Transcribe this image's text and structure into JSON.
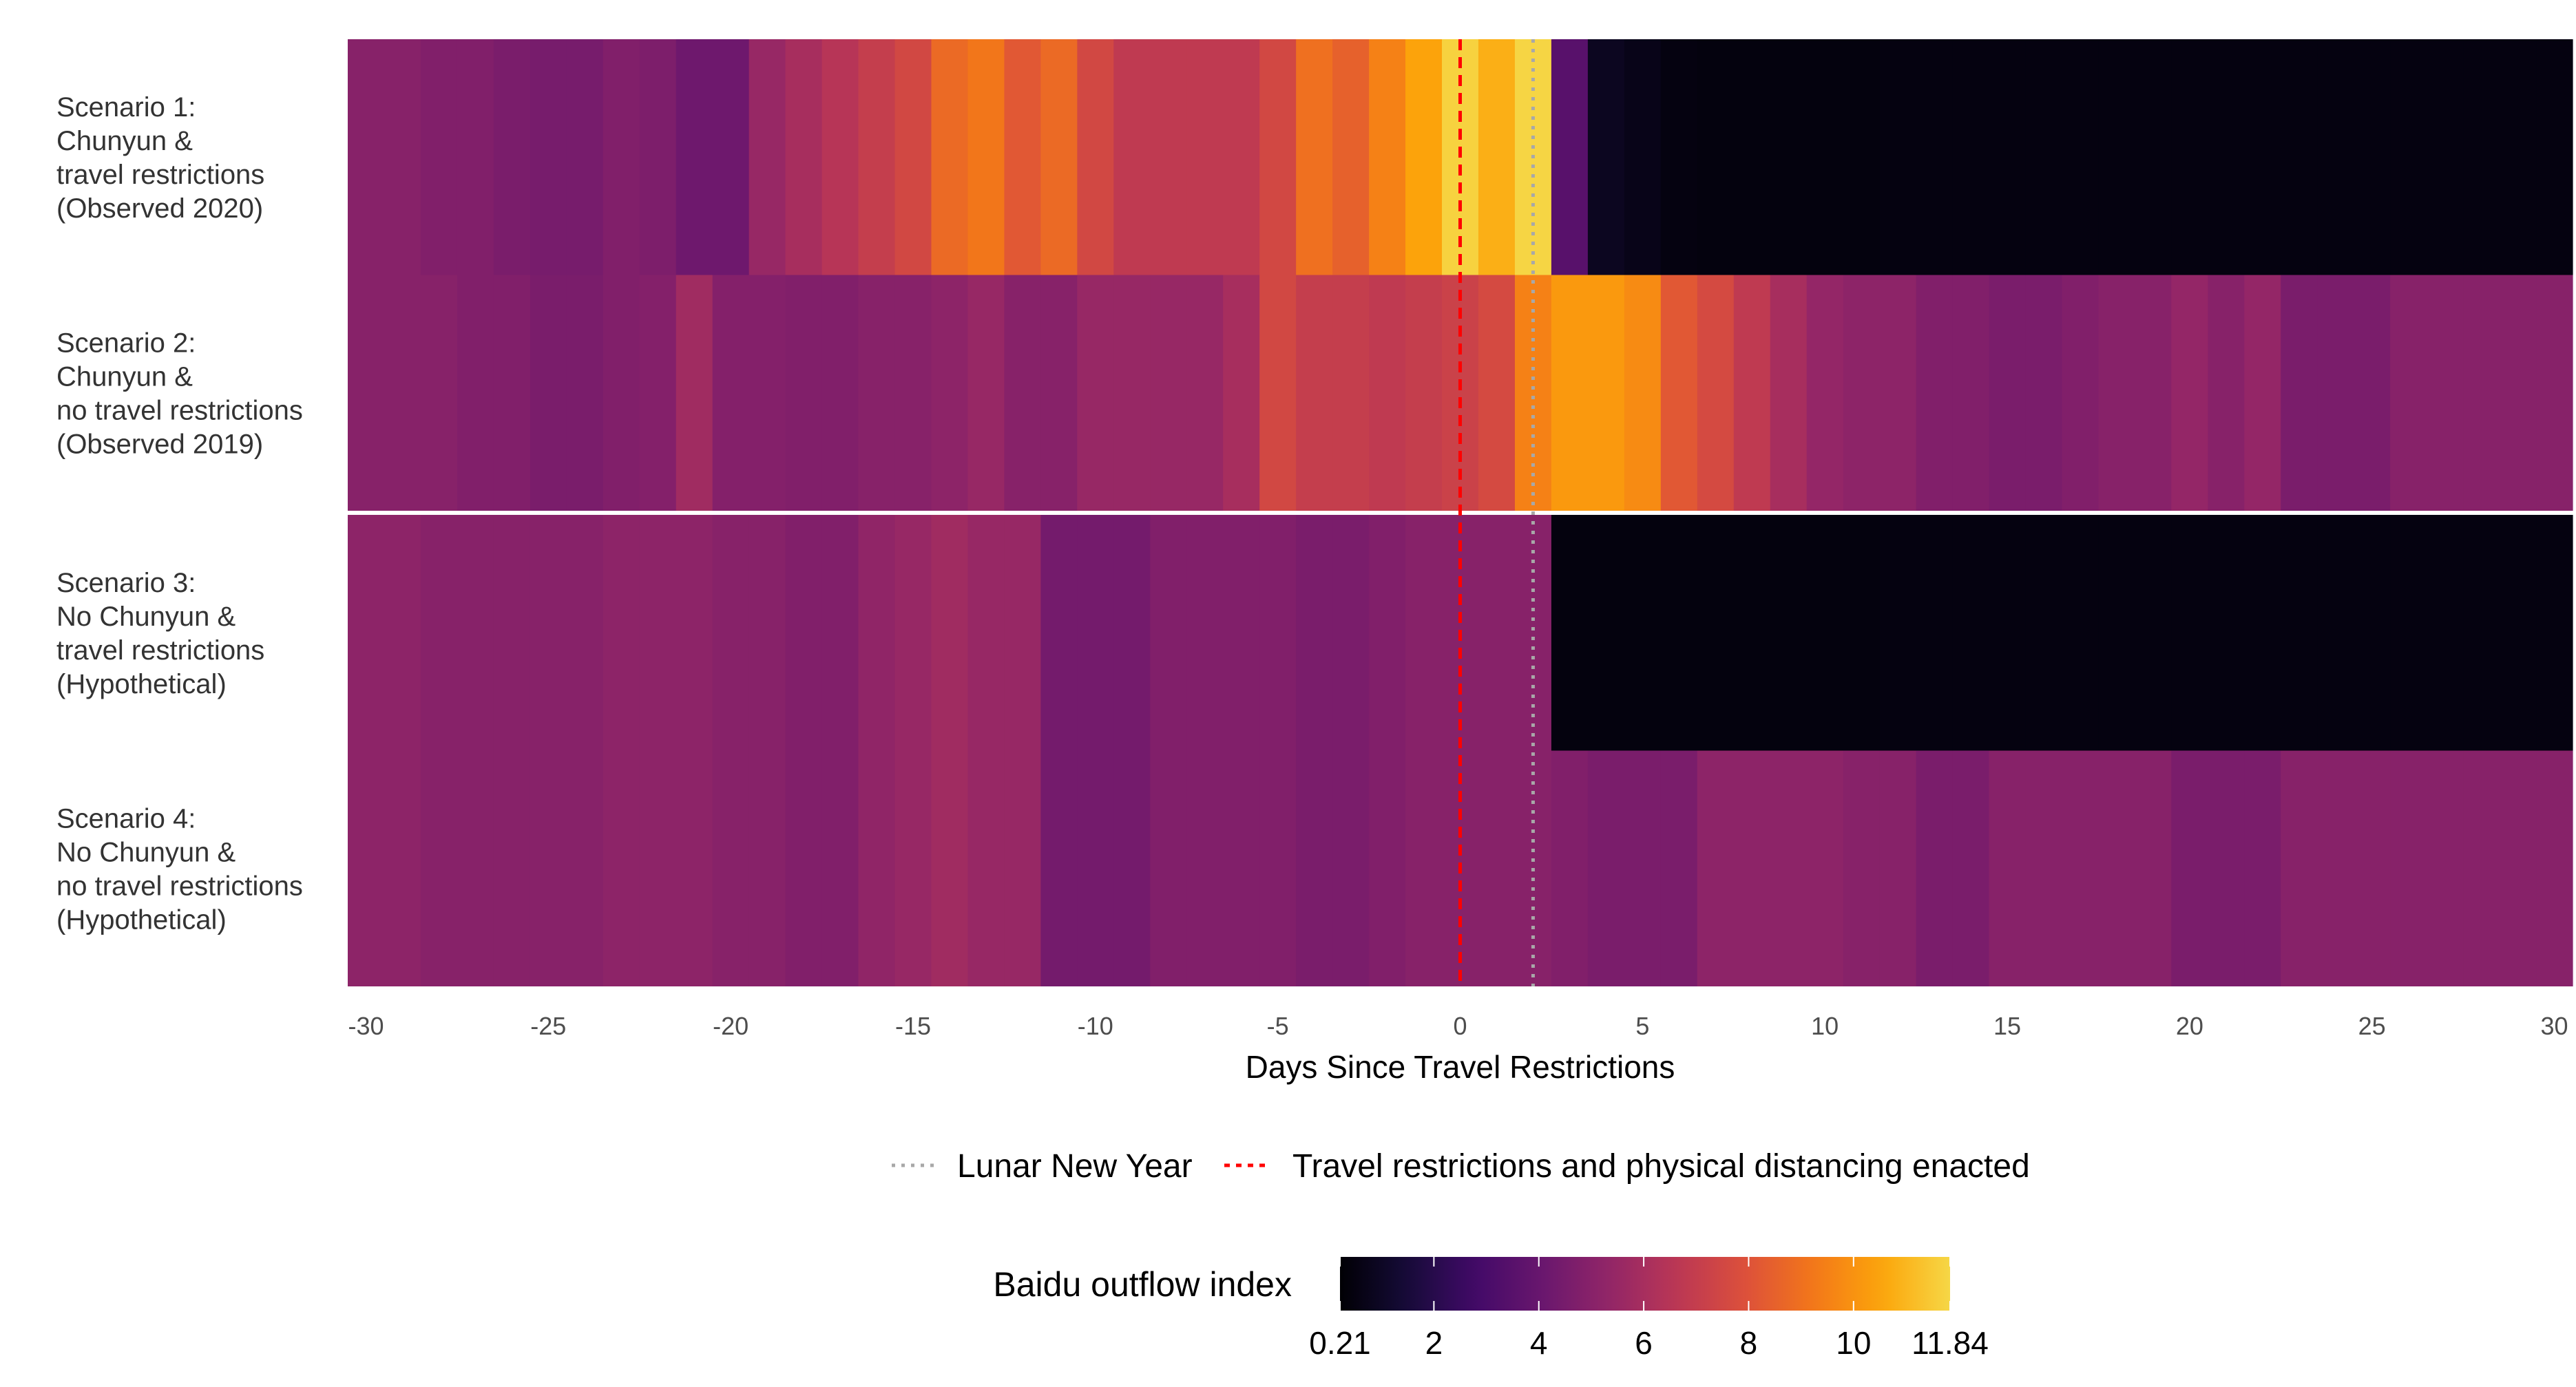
{
  "chart_data": {
    "type": "heatmap",
    "xlabel": "Days Since Travel Restrictions",
    "x_ticks": [
      -30,
      -25,
      -20,
      -15,
      -10,
      -5,
      0,
      5,
      10,
      15,
      20,
      25,
      30
    ],
    "x_tick_labels": [
      "-30",
      "-25",
      "-20",
      "-15",
      "-10",
      "-5",
      "0",
      "5",
      "10",
      "15",
      "20",
      "25",
      "30"
    ],
    "x_range": [
      -30.5,
      30.5
    ],
    "day_range": [
      -30,
      30
    ],
    "rows": [
      {
        "label_lines": [
          "Scenario 1:",
          "Chunyun &",
          "travel restrictions",
          "(Observed 2020)"
        ],
        "values": [
          5.0,
          5.0,
          4.8,
          4.8,
          4.6,
          4.5,
          4.5,
          4.8,
          4.7,
          4.2,
          4.2,
          5.5,
          6.0,
          6.5,
          7.0,
          7.5,
          8.8,
          9.2,
          8.2,
          8.8,
          7.5,
          6.8,
          6.8,
          6.8,
          6.8,
          7.5,
          9.0,
          8.5,
          9.5,
          10.5,
          11.7,
          10.8,
          11.8,
          3.5,
          0.9,
          0.7,
          0.5,
          0.45,
          0.45,
          0.45,
          0.45,
          0.45,
          0.5,
          0.5,
          0.5,
          0.5,
          0.5,
          0.5,
          0.5,
          0.5,
          0.5,
          0.5,
          0.5,
          0.5,
          0.5,
          0.5,
          0.5,
          0.5,
          0.5,
          0.5,
          0.5
        ]
      },
      {
        "label_lines": [
          "Scenario 2:",
          "Chunyun &",
          "no travel restrictions",
          "(Observed 2019)"
        ],
        "values": [
          5.0,
          5.0,
          5.0,
          4.8,
          4.8,
          4.6,
          4.6,
          4.8,
          4.9,
          5.8,
          4.9,
          4.9,
          4.8,
          4.8,
          5.0,
          5.0,
          5.2,
          5.5,
          5.0,
          5.0,
          5.5,
          5.5,
          5.5,
          5.5,
          6.0,
          7.5,
          7.0,
          7.0,
          6.8,
          7.0,
          7.2,
          7.6,
          9.5,
          10.2,
          10.2,
          9.8,
          8.2,
          7.6,
          6.8,
          6.0,
          5.4,
          5.2,
          5.2,
          4.8,
          4.8,
          4.6,
          4.6,
          4.8,
          5.0,
          5.0,
          5.4,
          5.0,
          5.4,
          4.6,
          4.6,
          4.6,
          5.0,
          5.0,
          5.0,
          5.0,
          5.0
        ]
      },
      {
        "label_lines": [
          "Scenario 3:",
          "No Chunyun &",
          "travel restrictions",
          "(Hypothetical)"
        ],
        "values": [
          5.2,
          5.2,
          5.0,
          5.0,
          5.0,
          5.0,
          5.0,
          5.2,
          5.2,
          5.2,
          5.0,
          5.0,
          4.8,
          4.8,
          5.3,
          5.5,
          5.8,
          5.5,
          5.5,
          4.4,
          4.4,
          4.4,
          4.8,
          4.8,
          4.8,
          4.8,
          4.6,
          4.6,
          4.8,
          5.0,
          5.0,
          5.0,
          5.0,
          0.45,
          0.45,
          0.45,
          0.45,
          0.45,
          0.45,
          0.45,
          0.45,
          0.45,
          0.5,
          0.5,
          0.5,
          0.5,
          0.5,
          0.5,
          0.5,
          0.5,
          0.5,
          0.5,
          0.5,
          0.5,
          0.5,
          0.5,
          0.5,
          0.5,
          0.5,
          0.5,
          0.5
        ]
      },
      {
        "label_lines": [
          "Scenario 4:",
          "No Chunyun &",
          "no travel restrictions",
          "(Hypothetical)"
        ],
        "values": [
          5.2,
          5.2,
          5.0,
          5.0,
          5.0,
          5.0,
          5.0,
          5.2,
          5.2,
          5.2,
          5.0,
          5.0,
          4.8,
          4.8,
          5.3,
          5.5,
          5.8,
          5.5,
          5.5,
          4.4,
          4.4,
          4.4,
          4.8,
          4.8,
          4.8,
          4.8,
          4.6,
          4.6,
          4.8,
          5.0,
          5.0,
          5.0,
          5.0,
          4.8,
          4.6,
          4.6,
          4.6,
          5.2,
          5.2,
          5.2,
          5.2,
          5.0,
          5.0,
          4.6,
          4.6,
          5.0,
          5.0,
          5.0,
          5.0,
          5.0,
          4.6,
          4.6,
          4.6,
          5.0,
          5.0,
          5.0,
          5.0,
          5.0,
          5.0,
          5.0,
          5.0
        ]
      }
    ],
    "lunar_new_year_day": 2,
    "restrictions_day": 0,
    "legend": {
      "lunar_new_year_label": "Lunar New Year",
      "lunar_new_year_color": "#a8a8a8",
      "restrictions_label": "Travel restrictions and physical distancing enacted",
      "restrictions_color": "#ff0000"
    },
    "colorbar": {
      "title": "Baidu outflow index",
      "min": 0.21,
      "max": 11.84,
      "ticks": [
        0.21,
        2,
        4,
        6,
        8,
        10,
        11.84
      ],
      "tick_labels": [
        "0.21",
        "2",
        "4",
        "6",
        "8",
        "10",
        "11.84"
      ],
      "colormap": "inferno"
    },
    "scenario_separator_color": "#ffffff",
    "legend_placement": "bottom",
    "grid": false
  }
}
